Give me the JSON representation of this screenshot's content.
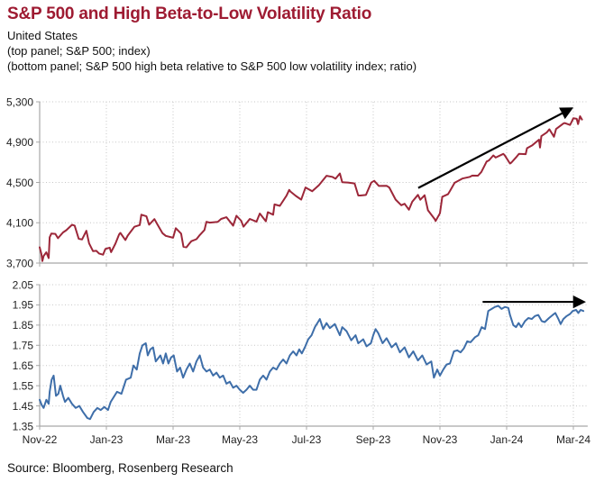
{
  "header": {
    "title": "S&P 500 and High Beta-to-Low Volatility Ratio",
    "subtitle_lines": [
      "United States",
      "(top panel; S&P 500; index)",
      "(bottom panel; S&P 500 high beta relative to S&P 500 low volatility index; ratio)"
    ]
  },
  "source_text": "Source: Bloomberg, Rosenberg Research",
  "colors": {
    "title": "#9e1b32",
    "sp500_line": "#9c2739",
    "ratio_line": "#3e6ea9",
    "grid": "#c6c6c6",
    "axis": "#a8a8a8",
    "text": "#1f1f1f",
    "arrow": "#000000"
  },
  "x_axis": {
    "unit": "months since Nov-2022",
    "range": [
      0,
      16.43
    ],
    "ticks": [
      {
        "t": 0,
        "label": "Nov-22"
      },
      {
        "t": 2,
        "label": "Jan-23"
      },
      {
        "t": 4,
        "label": "Mar-23"
      },
      {
        "t": 6,
        "label": "May-23"
      },
      {
        "t": 8,
        "label": "Jul-23"
      },
      {
        "t": 10,
        "label": "Sep-23"
      },
      {
        "t": 12,
        "label": "Nov-23"
      },
      {
        "t": 14,
        "label": "Jan-24"
      },
      {
        "t": 16,
        "label": "Mar-24"
      }
    ]
  },
  "chart_data": [
    {
      "type": "line",
      "panel": "top",
      "name": "S&P 500",
      "unit": "index",
      "ylim": [
        3700,
        5300
      ],
      "yticks": [
        {
          "v": 5300,
          "label": "5,300"
        },
        {
          "v": 4900,
          "label": "4,900"
        },
        {
          "v": 4500,
          "label": "4,500"
        },
        {
          "v": 4100,
          "label": "4,100"
        },
        {
          "v": 3700,
          "label": "3,700"
        }
      ],
      "line_color_key": "sp500_line",
      "annotation_arrow": {
        "from": [
          11.35,
          4445
        ],
        "to": [
          15.95,
          5235
        ]
      },
      "points": [
        [
          0,
          3856
        ],
        [
          0.05,
          3790
        ],
        [
          0.08,
          3720
        ],
        [
          0.12,
          3771
        ],
        [
          0.2,
          3807
        ],
        [
          0.27,
          3749
        ],
        [
          0.3,
          3956
        ],
        [
          0.35,
          3993
        ],
        [
          0.47,
          3990
        ],
        [
          0.55,
          3947
        ],
        [
          0.7,
          4004
        ],
        [
          0.8,
          4026
        ],
        [
          0.97,
          4080
        ],
        [
          1.05,
          4072
        ],
        [
          1.17,
          3941
        ],
        [
          1.27,
          3934
        ],
        [
          1.4,
          4020
        ],
        [
          1.48,
          3896
        ],
        [
          1.6,
          3818
        ],
        [
          1.7,
          3822
        ],
        [
          1.78,
          3795
        ],
        [
          1.9,
          3783
        ],
        [
          1.97,
          3840
        ],
        [
          2.1,
          3853
        ],
        [
          2.14,
          3808
        ],
        [
          2.27,
          3892
        ],
        [
          2.38,
          3983
        ],
        [
          2.42,
          3999
        ],
        [
          2.57,
          3929
        ],
        [
          2.64,
          3973
        ],
        [
          2.84,
          4060
        ],
        [
          3.0,
          4077
        ],
        [
          3.05,
          4180
        ],
        [
          3.2,
          4164
        ],
        [
          3.28,
          4081
        ],
        [
          3.44,
          4136
        ],
        [
          3.52,
          4090
        ],
        [
          3.68,
          3997
        ],
        [
          3.78,
          3970
        ],
        [
          4.0,
          3951
        ],
        [
          4.08,
          4046
        ],
        [
          4.24,
          3992
        ],
        [
          4.31,
          3862
        ],
        [
          4.4,
          3856
        ],
        [
          4.48,
          3891
        ],
        [
          4.55,
          3917
        ],
        [
          4.7,
          3937
        ],
        [
          4.78,
          3971
        ],
        [
          4.94,
          4028
        ],
        [
          5.0,
          4109
        ],
        [
          5.1,
          4101
        ],
        [
          5.34,
          4109
        ],
        [
          5.44,
          4138
        ],
        [
          5.6,
          4155
        ],
        [
          5.8,
          4071
        ],
        [
          5.9,
          4169
        ],
        [
          6.04,
          4120
        ],
        [
          6.11,
          4061
        ],
        [
          6.3,
          4138
        ],
        [
          6.5,
          4110
        ],
        [
          6.6,
          4192
        ],
        [
          6.78,
          4115
        ],
        [
          6.84,
          4205
        ],
        [
          7.0,
          4180
        ],
        [
          7.04,
          4282
        ],
        [
          7.2,
          4268
        ],
        [
          7.4,
          4369
        ],
        [
          7.48,
          4426
        ],
        [
          7.52,
          4410
        ],
        [
          7.68,
          4366
        ],
        [
          7.84,
          4329
        ],
        [
          7.97,
          4450
        ],
        [
          8.17,
          4412
        ],
        [
          8.37,
          4472
        ],
        [
          8.6,
          4566
        ],
        [
          8.77,
          4555
        ],
        [
          8.87,
          4537
        ],
        [
          9.0,
          4589
        ],
        [
          9.07,
          4502
        ],
        [
          9.24,
          4499
        ],
        [
          9.44,
          4490
        ],
        [
          9.55,
          4370
        ],
        [
          9.62,
          4370
        ],
        [
          9.78,
          4376
        ],
        [
          9.94,
          4498
        ],
        [
          10.03,
          4516
        ],
        [
          10.17,
          4465
        ],
        [
          10.4,
          4467
        ],
        [
          10.48,
          4450
        ],
        [
          10.67,
          4330
        ],
        [
          10.84,
          4274
        ],
        [
          10.94,
          4288
        ],
        [
          11.07,
          4229
        ],
        [
          11.17,
          4309
        ],
        [
          11.34,
          4377
        ],
        [
          11.41,
          4328
        ],
        [
          11.54,
          4373
        ],
        [
          11.64,
          4224
        ],
        [
          11.84,
          4137
        ],
        [
          11.87,
          4117
        ],
        [
          12.0,
          4194
        ],
        [
          12.07,
          4358
        ],
        [
          12.24,
          4383
        ],
        [
          12.3,
          4415
        ],
        [
          12.44,
          4496
        ],
        [
          12.54,
          4514
        ],
        [
          12.67,
          4538
        ],
        [
          12.9,
          4555
        ],
        [
          12.97,
          4568
        ],
        [
          13.14,
          4567
        ],
        [
          13.24,
          4604
        ],
        [
          13.4,
          4707
        ],
        [
          13.47,
          4719
        ],
        [
          13.6,
          4768
        ],
        [
          13.67,
          4747
        ],
        [
          13.9,
          4783
        ],
        [
          13.94,
          4770
        ],
        [
          14.1,
          4688
        ],
        [
          14.14,
          4697
        ],
        [
          14.3,
          4756
        ],
        [
          14.37,
          4784
        ],
        [
          14.57,
          4781
        ],
        [
          14.61,
          4840
        ],
        [
          14.77,
          4869
        ],
        [
          14.97,
          4925
        ],
        [
          15.0,
          4846
        ],
        [
          15.04,
          4959
        ],
        [
          15.2,
          4995
        ],
        [
          15.28,
          5027
        ],
        [
          15.42,
          4953
        ],
        [
          15.48,
          5030
        ],
        [
          15.71,
          5087
        ],
        [
          15.74,
          5089
        ],
        [
          15.9,
          5070
        ],
        [
          15.94,
          5096
        ],
        [
          16.0,
          5137
        ],
        [
          16.1,
          5131
        ],
        [
          16.14,
          5079
        ],
        [
          16.2,
          5157
        ],
        [
          16.26,
          5124
        ]
      ]
    },
    {
      "type": "line",
      "panel": "bottom",
      "name": "S&P 500 high beta relative to S&P 500 low volatility index",
      "unit": "ratio",
      "ylim": [
        1.35,
        2.05
      ],
      "yticks": [
        {
          "v": 2.05,
          "label": "2.05"
        },
        {
          "v": 1.95,
          "label": "1.95"
        },
        {
          "v": 1.85,
          "label": "1.85"
        },
        {
          "v": 1.75,
          "label": "1.75"
        },
        {
          "v": 1.65,
          "label": "1.65"
        },
        {
          "v": 1.55,
          "label": "1.55"
        },
        {
          "v": 1.45,
          "label": "1.45"
        },
        {
          "v": 1.35,
          "label": "1.35"
        }
      ],
      "line_color_key": "ratio_line",
      "annotation_arrow": {
        "from": [
          13.28,
          1.965
        ],
        "to": [
          16.32,
          1.965
        ]
      },
      "points": [
        [
          0,
          1.48
        ],
        [
          0.06,
          1.455
        ],
        [
          0.12,
          1.44
        ],
        [
          0.2,
          1.48
        ],
        [
          0.27,
          1.46
        ],
        [
          0.3,
          1.52
        ],
        [
          0.36,
          1.58
        ],
        [
          0.42,
          1.6
        ],
        [
          0.49,
          1.5
        ],
        [
          0.56,
          1.51
        ],
        [
          0.62,
          1.55
        ],
        [
          0.7,
          1.5
        ],
        [
          0.76,
          1.47
        ],
        [
          0.86,
          1.49
        ],
        [
          0.97,
          1.46
        ],
        [
          1.08,
          1.44
        ],
        [
          1.19,
          1.45
        ],
        [
          1.3,
          1.42
        ],
        [
          1.43,
          1.39
        ],
        [
          1.51,
          1.385
        ],
        [
          1.62,
          1.42
        ],
        [
          1.73,
          1.44
        ],
        [
          1.83,
          1.43
        ],
        [
          1.94,
          1.445
        ],
        [
          2.05,
          1.43
        ],
        [
          2.13,
          1.47
        ],
        [
          2.32,
          1.52
        ],
        [
          2.45,
          1.51
        ],
        [
          2.59,
          1.58
        ],
        [
          2.73,
          1.59
        ],
        [
          2.81,
          1.65
        ],
        [
          2.91,
          1.63
        ],
        [
          3.0,
          1.71
        ],
        [
          3.08,
          1.75
        ],
        [
          3.18,
          1.76
        ],
        [
          3.24,
          1.7
        ],
        [
          3.32,
          1.73
        ],
        [
          3.4,
          1.74
        ],
        [
          3.48,
          1.67
        ],
        [
          3.62,
          1.7
        ],
        [
          3.7,
          1.66
        ],
        [
          3.78,
          1.71
        ],
        [
          3.86,
          1.66
        ],
        [
          3.94,
          1.69
        ],
        [
          4.02,
          1.7
        ],
        [
          4.12,
          1.62
        ],
        [
          4.21,
          1.64
        ],
        [
          4.3,
          1.59
        ],
        [
          4.4,
          1.63
        ],
        [
          4.5,
          1.66
        ],
        [
          4.6,
          1.62
        ],
        [
          4.7,
          1.67
        ],
        [
          4.8,
          1.7
        ],
        [
          4.9,
          1.64
        ],
        [
          5.0,
          1.62
        ],
        [
          5.1,
          1.63
        ],
        [
          5.2,
          1.6
        ],
        [
          5.3,
          1.615
        ],
        [
          5.4,
          1.59
        ],
        [
          5.5,
          1.6
        ],
        [
          5.6,
          1.56
        ],
        [
          5.7,
          1.57
        ],
        [
          5.8,
          1.54
        ],
        [
          5.9,
          1.55
        ],
        [
          6.0,
          1.53
        ],
        [
          6.1,
          1.515
        ],
        [
          6.2,
          1.53
        ],
        [
          6.3,
          1.55
        ],
        [
          6.4,
          1.53
        ],
        [
          6.5,
          1.53
        ],
        [
          6.6,
          1.58
        ],
        [
          6.7,
          1.6
        ],
        [
          6.8,
          1.58
        ],
        [
          6.9,
          1.62
        ],
        [
          7.0,
          1.64
        ],
        [
          7.1,
          1.63
        ],
        [
          7.2,
          1.66
        ],
        [
          7.3,
          1.68
        ],
        [
          7.4,
          1.66
        ],
        [
          7.5,
          1.7
        ],
        [
          7.6,
          1.72
        ],
        [
          7.7,
          1.7
        ],
        [
          7.78,
          1.73
        ],
        [
          7.86,
          1.71
        ],
        [
          7.95,
          1.74
        ],
        [
          8.05,
          1.78
        ],
        [
          8.15,
          1.8
        ],
        [
          8.25,
          1.84
        ],
        [
          8.4,
          1.88
        ],
        [
          8.5,
          1.83
        ],
        [
          8.6,
          1.86
        ],
        [
          8.7,
          1.835
        ],
        [
          8.85,
          1.855
        ],
        [
          9.0,
          1.8
        ],
        [
          9.07,
          1.84
        ],
        [
          9.2,
          1.82
        ],
        [
          9.34,
          1.775
        ],
        [
          9.47,
          1.8
        ],
        [
          9.55,
          1.76
        ],
        [
          9.7,
          1.78
        ],
        [
          9.8,
          1.745
        ],
        [
          9.93,
          1.76
        ],
        [
          10.0,
          1.8
        ],
        [
          10.07,
          1.83
        ],
        [
          10.15,
          1.81
        ],
        [
          10.28,
          1.76
        ],
        [
          10.4,
          1.785
        ],
        [
          10.55,
          1.74
        ],
        [
          10.68,
          1.76
        ],
        [
          10.8,
          1.715
        ],
        [
          10.94,
          1.74
        ],
        [
          11.07,
          1.69
        ],
        [
          11.2,
          1.72
        ],
        [
          11.34,
          1.675
        ],
        [
          11.47,
          1.7
        ],
        [
          11.6,
          1.655
        ],
        [
          11.74,
          1.67
        ],
        [
          11.82,
          1.59
        ],
        [
          11.92,
          1.63
        ],
        [
          12.0,
          1.6
        ],
        [
          12.1,
          1.63
        ],
        [
          12.2,
          1.655
        ],
        [
          12.3,
          1.66
        ],
        [
          12.42,
          1.72
        ],
        [
          12.52,
          1.725
        ],
        [
          12.62,
          1.715
        ],
        [
          12.72,
          1.735
        ],
        [
          12.82,
          1.77
        ],
        [
          12.92,
          1.765
        ],
        [
          13.05,
          1.79
        ],
        [
          13.15,
          1.8
        ],
        [
          13.25,
          1.84
        ],
        [
          13.35,
          1.83
        ],
        [
          13.45,
          1.92
        ],
        [
          13.55,
          1.93
        ],
        [
          13.65,
          1.94
        ],
        [
          13.75,
          1.945
        ],
        [
          13.85,
          1.93
        ],
        [
          13.95,
          1.94
        ],
        [
          14.05,
          1.935
        ],
        [
          14.1,
          1.9
        ],
        [
          14.2,
          1.85
        ],
        [
          14.28,
          1.84
        ],
        [
          14.36,
          1.86
        ],
        [
          14.44,
          1.84
        ],
        [
          14.55,
          1.87
        ],
        [
          14.65,
          1.885
        ],
        [
          14.75,
          1.88
        ],
        [
          14.85,
          1.895
        ],
        [
          14.95,
          1.9
        ],
        [
          15.05,
          1.87
        ],
        [
          15.14,
          1.865
        ],
        [
          15.27,
          1.885
        ],
        [
          15.38,
          1.9
        ],
        [
          15.46,
          1.91
        ],
        [
          15.55,
          1.88
        ],
        [
          15.62,
          1.855
        ],
        [
          15.7,
          1.88
        ],
        [
          15.8,
          1.895
        ],
        [
          15.9,
          1.905
        ],
        [
          15.98,
          1.92
        ],
        [
          16.08,
          1.925
        ],
        [
          16.15,
          1.91
        ],
        [
          16.22,
          1.925
        ],
        [
          16.3,
          1.92
        ]
      ]
    }
  ]
}
